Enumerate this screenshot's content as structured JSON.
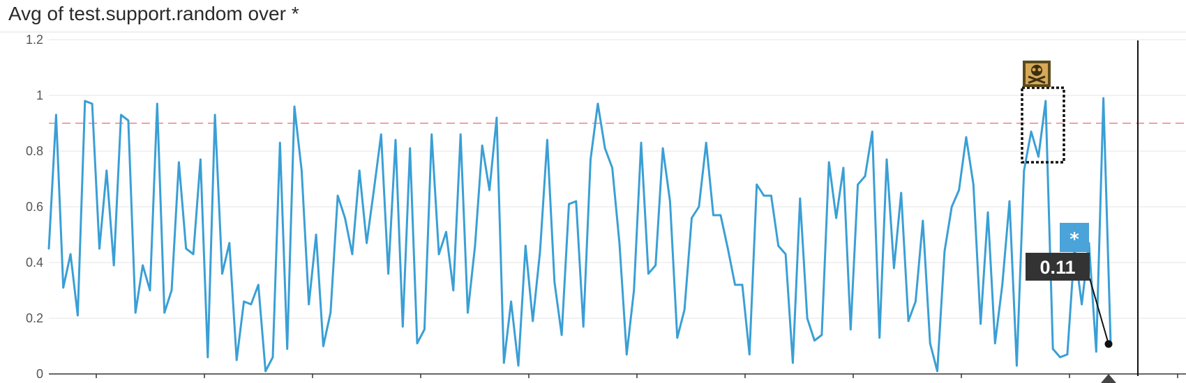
{
  "title": "Avg of test.support.random over *",
  "chart_data": {
    "type": "line",
    "title": "Avg of test.support.random over *",
    "xlabel": "",
    "ylabel": "",
    "ylim": [
      0,
      1.2
    ],
    "yticks": [
      "0",
      "0.2",
      "0.4",
      "0.6",
      "0.8",
      "1",
      "1.2"
    ],
    "grid": true,
    "line_color": "#3a9fd5",
    "threshold": {
      "value": 0.9,
      "color": "#f08080",
      "style": "dashed"
    },
    "series": [
      {
        "values": [
          0.45,
          0.93,
          0.31,
          0.43,
          0.21,
          0.98,
          0.97,
          0.45,
          0.73,
          0.39,
          0.93,
          0.91,
          0.22,
          0.39,
          0.3,
          0.97,
          0.22,
          0.3,
          0.76,
          0.45,
          0.43,
          0.77,
          0.06,
          0.93,
          0.36,
          0.47,
          0.05,
          0.26,
          0.25,
          0.32,
          0.01,
          0.06,
          0.83,
          0.09,
          0.96,
          0.73,
          0.25,
          0.5,
          0.1,
          0.22,
          0.64,
          0.56,
          0.43,
          0.73,
          0.47,
          0.66,
          0.86,
          0.36,
          0.84,
          0.17,
          0.81,
          0.11,
          0.16,
          0.86,
          0.43,
          0.51,
          0.3,
          0.86,
          0.22,
          0.46,
          0.82,
          0.66,
          0.92,
          0.04,
          0.26,
          0.03,
          0.46,
          0.19,
          0.44,
          0.84,
          0.33,
          0.14,
          0.61,
          0.62,
          0.17,
          0.77,
          0.97,
          0.81,
          0.74,
          0.47,
          0.07,
          0.3,
          0.83,
          0.36,
          0.39,
          0.81,
          0.62,
          0.13,
          0.23,
          0.56,
          0.6,
          0.83,
          0.57,
          0.57,
          0.45,
          0.32,
          0.32,
          0.07,
          0.68,
          0.64,
          0.64,
          0.46,
          0.43,
          0.04,
          0.63,
          0.2,
          0.12,
          0.14,
          0.76,
          0.56,
          0.74,
          0.16,
          0.68,
          0.71,
          0.87,
          0.13,
          0.77,
          0.38,
          0.65,
          0.19,
          0.26,
          0.55,
          0.11,
          0.01,
          0.44,
          0.6,
          0.66,
          0.85,
          0.68,
          0.18,
          0.58,
          0.11,
          0.32,
          0.62,
          0.03,
          0.73,
          0.87,
          0.78,
          0.98,
          0.09,
          0.06,
          0.07,
          0.45,
          0.25,
          0.47,
          0.08,
          0.99,
          0.11
        ]
      }
    ],
    "annotations": [
      {
        "kind": "event-icon",
        "icon": "skull-crossbones-icon"
      },
      {
        "kind": "highlight-box",
        "style": "dotted"
      },
      {
        "kind": "event-badge",
        "label": "*",
        "color": "#4aa3d9"
      },
      {
        "kind": "tooltip",
        "value_label": "0.11"
      }
    ]
  }
}
